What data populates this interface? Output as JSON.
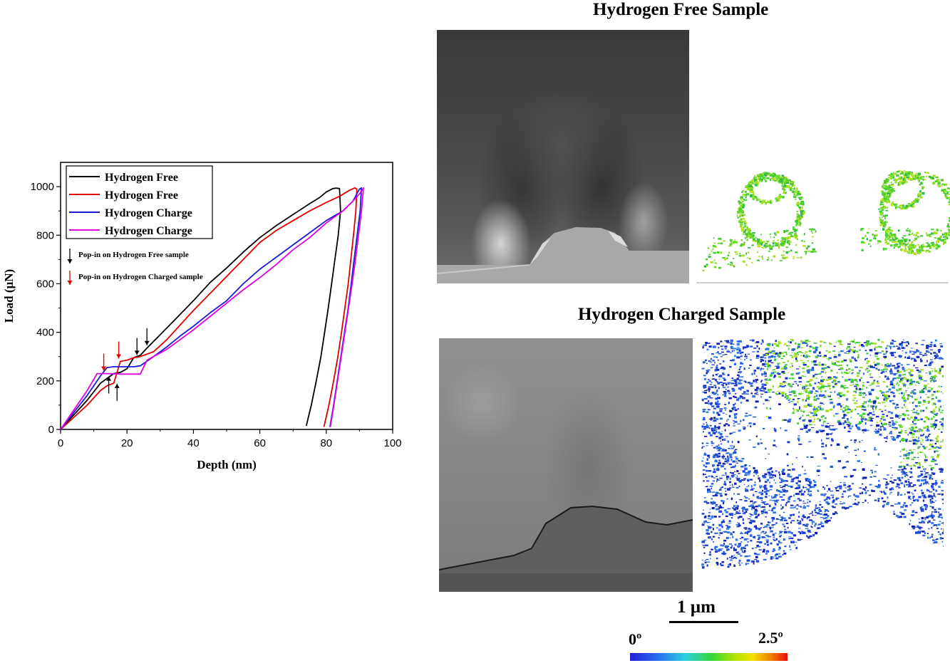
{
  "titles": {
    "free": "Hydrogen Free Sample",
    "charged": "Hydrogen Charged Sample"
  },
  "scale_bar": {
    "label": "1 µm"
  },
  "colorbar": {
    "min_label": "0º",
    "max_label": "2.5º"
  },
  "chart_data": {
    "type": "line",
    "xlabel": "Depth (nm)",
    "ylabel": "Load (µN)",
    "xlim": [
      0,
      100
    ],
    "ylim": [
      0,
      1100
    ],
    "xticks": [
      0,
      20,
      40,
      60,
      80,
      100
    ],
    "yticks": [
      0,
      200,
      400,
      600,
      800,
      1000
    ],
    "ytick_labels": [
      "0",
      "200",
      "400",
      "600",
      "800",
      "1000"
    ],
    "legend_position": "top-left",
    "series": [
      {
        "name": "Hydrogen Free",
        "color": "#000000",
        "x": [
          0,
          4,
          8,
          12,
          14,
          16,
          18,
          20,
          22,
          24,
          26,
          30,
          35,
          40,
          45,
          50,
          55,
          60,
          65,
          70,
          75,
          78,
          80,
          82,
          83,
          84,
          84.3,
          83.6,
          82.6,
          81.6,
          80.6,
          79.5,
          78.4,
          77,
          75.5,
          74
        ],
        "y": [
          0,
          60,
          120,
          190,
          210,
          230,
          235,
          250,
          295,
          305,
          335,
          390,
          460,
          530,
          605,
          665,
          730,
          790,
          840,
          885,
          930,
          955,
          978,
          992,
          994,
          992,
          900,
          800,
          700,
          600,
          500,
          400,
          300,
          200,
          100,
          15
        ]
      },
      {
        "name": "Hydrogen Free",
        "color": "#e00000",
        "x": [
          0,
          4,
          8,
          12,
          14,
          16,
          18,
          20,
          22,
          24,
          28,
          32,
          36,
          40,
          45,
          50,
          55,
          60,
          65,
          70,
          75,
          80,
          84,
          87,
          88.6,
          89.2,
          88.9,
          88.2,
          87.4,
          86.6,
          85.6,
          84.6,
          83.5,
          82.2,
          80.8,
          79.3
        ],
        "y": [
          0,
          50,
          100,
          160,
          180,
          190,
          280,
          285,
          295,
          300,
          320,
          370,
          430,
          490,
          560,
          630,
          700,
          770,
          820,
          860,
          900,
          935,
          960,
          985,
          995,
          990,
          900,
          800,
          700,
          600,
          500,
          400,
          300,
          200,
          100,
          10
        ]
      },
      {
        "name": "Hydrogen Charge",
        "color": "#1a1ad0",
        "x": [
          0,
          4,
          8,
          12,
          14,
          16,
          18,
          20,
          22,
          24,
          28,
          32,
          36,
          40,
          45,
          50,
          55,
          60,
          65,
          70,
          75,
          80,
          85,
          88,
          90,
          90.6,
          90.2,
          89.3,
          88.4,
          87.5,
          86.6,
          85.5,
          84.4,
          83.3,
          82.2,
          81.1
        ],
        "y": [
          0,
          70,
          140,
          220,
          255,
          258,
          258,
          258,
          258,
          262,
          300,
          340,
          385,
          425,
          480,
          530,
          600,
          660,
          710,
          760,
          810,
          860,
          900,
          940,
          990,
          995,
          900,
          800,
          700,
          600,
          500,
          400,
          300,
          200,
          100,
          10
        ]
      },
      {
        "name": "Hydrogen Charge",
        "color": "#e000e0",
        "x": [
          0,
          4,
          8,
          11,
          14,
          18,
          21,
          24,
          26,
          28,
          32,
          36,
          40,
          45,
          50,
          55,
          60,
          65,
          70,
          75,
          80,
          85,
          88,
          90,
          91,
          91.2,
          90.6,
          89.7,
          88.8,
          87.8,
          86.7,
          85.6,
          84.5,
          83.4,
          82.3,
          81.2
        ],
        "y": [
          0,
          80,
          160,
          230,
          230,
          228,
          228,
          228,
          285,
          300,
          330,
          370,
          410,
          465,
          520,
          575,
          625,
          680,
          740,
          790,
          850,
          900,
          940,
          970,
          990,
          995,
          900,
          800,
          700,
          600,
          500,
          400,
          300,
          200,
          100,
          10
        ]
      }
    ],
    "annotations": [
      {
        "text": "Pop-in on Hydrogen Free sample",
        "color": "#000000"
      },
      {
        "text": "Pop-in on Hydrogen Charged sample",
        "color": "#e00000"
      }
    ],
    "popin_markers": [
      {
        "x": 23,
        "y": 295,
        "color": "#000000",
        "direction": "down"
      },
      {
        "x": 26,
        "y": 335,
        "color": "#000000",
        "direction": "down"
      },
      {
        "x": 17,
        "y": 200,
        "color": "#000000",
        "direction": "up"
      },
      {
        "x": 14.5,
        "y": 230,
        "color": "#000000",
        "direction": "up"
      },
      {
        "x": 13,
        "y": 230,
        "color": "#e00000",
        "direction": "down"
      },
      {
        "x": 17.5,
        "y": 280,
        "color": "#e00000",
        "direction": "down"
      }
    ]
  }
}
